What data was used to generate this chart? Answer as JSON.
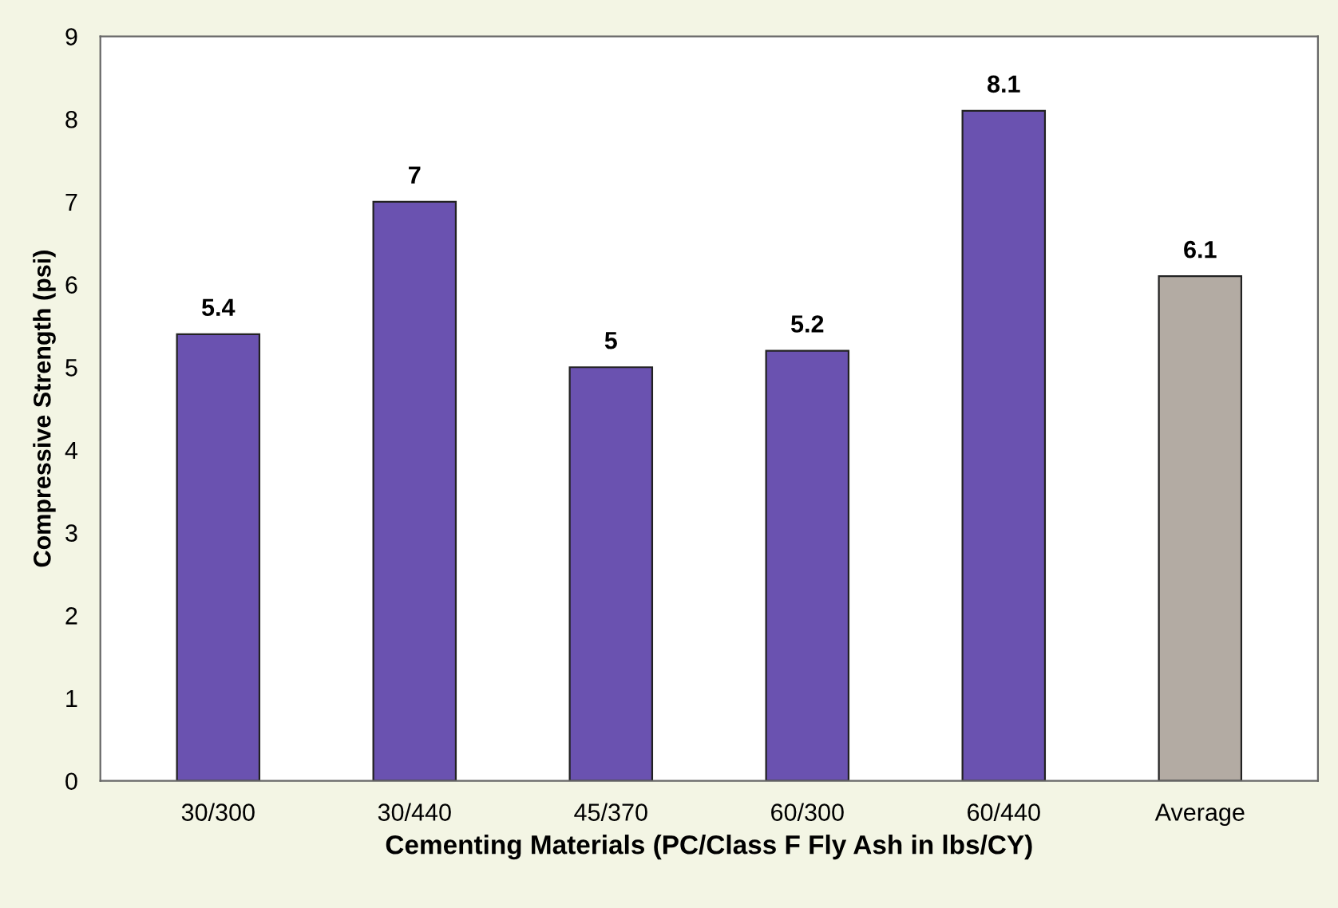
{
  "chart_data": {
    "type": "bar",
    "xlabel": "Cementing Materials (PC/Class F Fly Ash in lbs/CY)",
    "ylabel": "Compressive Strength (psi)",
    "categories": [
      "30/300",
      "30/440",
      "45/370",
      "60/300",
      "60/440",
      "Average"
    ],
    "values": [
      5.4,
      7,
      5,
      5.2,
      8.1,
      6.1
    ],
    "colors": [
      "#6a52b0",
      "#6a52b0",
      "#6a52b0",
      "#6a52b0",
      "#6a52b0",
      "#b3aba3"
    ],
    "data_labels": true,
    "ylim": [
      0,
      9
    ],
    "yticks": [
      0,
      1,
      2,
      3,
      4,
      5,
      6,
      7,
      8,
      9
    ],
    "grid": false,
    "legend": false
  }
}
